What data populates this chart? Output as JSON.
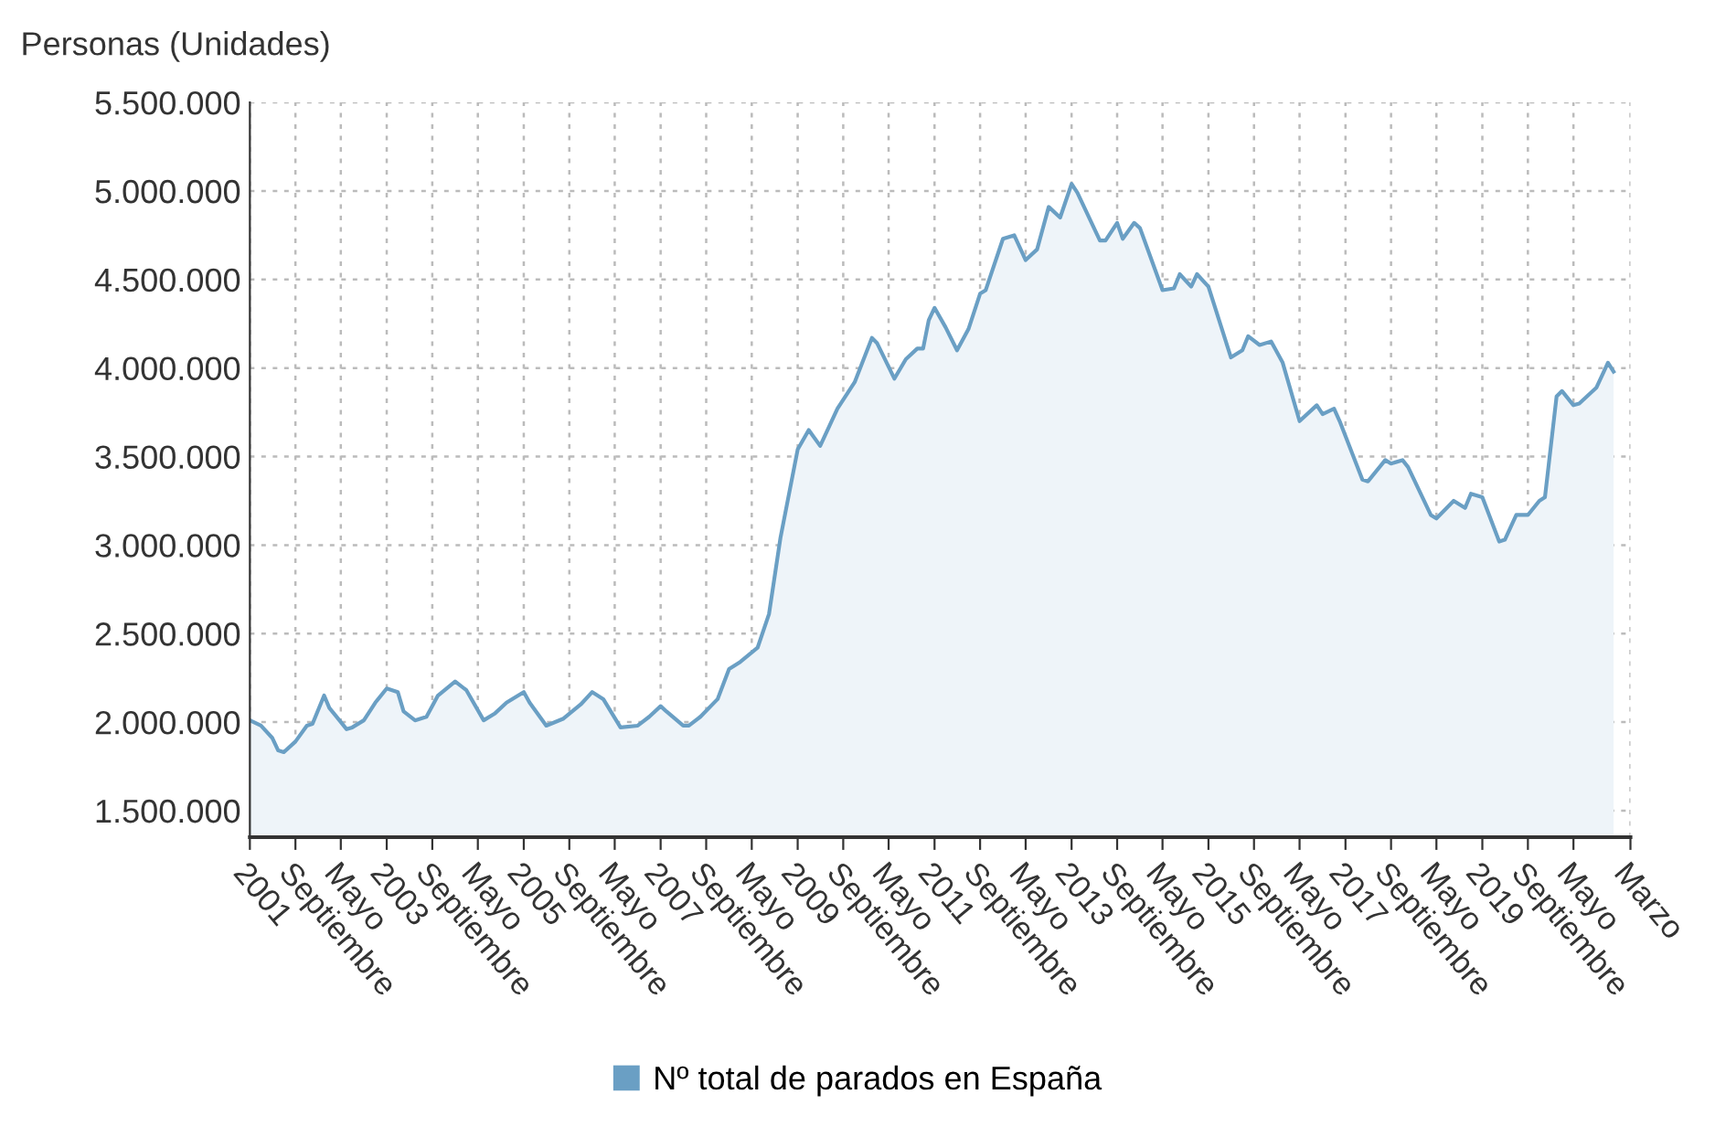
{
  "chart_data": {
    "type": "area",
    "ylabel": "Personas (Unidades)",
    "series": [
      {
        "name": "Nº total de parados en España",
        "color": "#6a9fc4",
        "x": [
          "2001-01",
          "2001-03",
          "2001-05",
          "2001-06",
          "2001-07",
          "2001-09",
          "2001-11",
          "2001-12",
          "2002-02",
          "2002-03",
          "2002-04",
          "2002-06",
          "2002-07",
          "2002-09",
          "2002-11",
          "2003-01",
          "2003-03",
          "2003-04",
          "2003-06",
          "2003-08",
          "2003-10",
          "2004-01",
          "2004-03",
          "2004-06",
          "2004-08",
          "2004-10",
          "2005-01",
          "2005-02",
          "2005-05",
          "2005-08",
          "2005-11",
          "2006-01",
          "2006-03",
          "2006-06",
          "2006-09",
          "2006-11",
          "2007-01",
          "2007-02",
          "2007-05",
          "2007-06",
          "2007-08",
          "2007-11",
          "2008-01",
          "2008-03",
          "2008-06",
          "2008-08",
          "2008-10",
          "2009-01",
          "2009-03",
          "2009-05",
          "2009-08",
          "2009-11",
          "2010-02",
          "2010-03",
          "2010-06",
          "2010-08",
          "2010-10",
          "2010-11",
          "2010-12",
          "2011-01",
          "2011-03",
          "2011-05",
          "2011-07",
          "2011-09",
          "2011-10",
          "2012-01",
          "2012-03",
          "2012-05",
          "2012-07",
          "2012-09",
          "2012-11",
          "2013-01",
          "2013-02",
          "2013-06",
          "2013-07",
          "2013-09",
          "2013-10",
          "2013-12",
          "2014-01",
          "2014-05",
          "2014-07",
          "2014-08",
          "2014-10",
          "2014-11",
          "2015-01",
          "2015-05",
          "2015-07",
          "2015-08",
          "2015-10",
          "2015-12",
          "2016-02",
          "2016-05",
          "2016-08",
          "2016-09",
          "2016-11",
          "2016-12",
          "2017-04",
          "2017-05",
          "2017-08",
          "2017-09",
          "2017-11",
          "2017-12",
          "2018-04",
          "2018-05",
          "2018-08",
          "2018-10",
          "2018-11",
          "2019-01",
          "2019-04",
          "2019-05",
          "2019-07",
          "2019-09",
          "2019-11",
          "2019-12",
          "2020-02",
          "2020-03",
          "2020-05",
          "2020-06",
          "2020-09",
          "2020-11",
          "2020-12"
        ],
        "values": [
          2010000,
          1980000,
          1910000,
          1840000,
          1830000,
          1890000,
          1980000,
          1990000,
          2150000,
          2080000,
          2040000,
          1960000,
          1970000,
          2010000,
          2110000,
          2190000,
          2170000,
          2060000,
          2010000,
          2030000,
          2150000,
          2230000,
          2180000,
          2010000,
          2050000,
          2110000,
          2170000,
          2110000,
          1980000,
          2020000,
          2100000,
          2170000,
          2130000,
          1970000,
          1980000,
          2030000,
          2090000,
          2060000,
          1980000,
          1980000,
          2030000,
          2130000,
          2300000,
          2340000,
          2420000,
          2610000,
          3040000,
          3540000,
          3650000,
          3560000,
          3770000,
          3920000,
          4170000,
          4140000,
          3940000,
          4050000,
          4110000,
          4110000,
          4270000,
          4340000,
          4230000,
          4100000,
          4220000,
          4420000,
          4440000,
          4730000,
          4750000,
          4610000,
          4670000,
          4910000,
          4850000,
          5040000,
          4990000,
          4720000,
          4720000,
          4820000,
          4730000,
          4820000,
          4790000,
          4440000,
          4450000,
          4530000,
          4460000,
          4530000,
          4460000,
          4060000,
          4100000,
          4180000,
          4130000,
          4150000,
          4030000,
          3700000,
          3790000,
          3740000,
          3770000,
          3700000,
          3370000,
          3360000,
          3480000,
          3460000,
          3480000,
          3440000,
          3170000,
          3150000,
          3250000,
          3210000,
          3290000,
          3270000,
          3020000,
          3030000,
          3170000,
          3170000,
          3250000,
          3270000,
          3840000,
          3870000,
          3790000,
          3800000,
          3890000,
          4030000,
          3980000
        ]
      }
    ],
    "xlim": [
      "2001-01",
      "2021-03"
    ],
    "xticks": [
      {
        "value": "2001-01",
        "label": "2001"
      },
      {
        "value": "2001-09",
        "label": "Septiembre"
      },
      {
        "value": "2002-05",
        "label": "Mayo"
      },
      {
        "value": "2003-01",
        "label": "2003"
      },
      {
        "value": "2003-09",
        "label": "Septiembre"
      },
      {
        "value": "2004-05",
        "label": "Mayo"
      },
      {
        "value": "2005-01",
        "label": "2005"
      },
      {
        "value": "2005-09",
        "label": "Septiembre"
      },
      {
        "value": "2006-05",
        "label": "Mayo"
      },
      {
        "value": "2007-01",
        "label": "2007"
      },
      {
        "value": "2007-09",
        "label": "Septiembre"
      },
      {
        "value": "2008-05",
        "label": "Mayo"
      },
      {
        "value": "2009-01",
        "label": "2009"
      },
      {
        "value": "2009-09",
        "label": "Septiembre"
      },
      {
        "value": "2010-05",
        "label": "Mayo"
      },
      {
        "value": "2011-01",
        "label": "2011"
      },
      {
        "value": "2011-09",
        "label": "Septiembre"
      },
      {
        "value": "2012-05",
        "label": "Mayo"
      },
      {
        "value": "2013-01",
        "label": "2013"
      },
      {
        "value": "2013-09",
        "label": "Septiembre"
      },
      {
        "value": "2014-05",
        "label": "Mayo"
      },
      {
        "value": "2015-01",
        "label": "2015"
      },
      {
        "value": "2015-09",
        "label": "Septiembre"
      },
      {
        "value": "2016-05",
        "label": "Mayo"
      },
      {
        "value": "2017-01",
        "label": "2017"
      },
      {
        "value": "2017-09",
        "label": "Septiembre"
      },
      {
        "value": "2018-05",
        "label": "Mayo"
      },
      {
        "value": "2019-01",
        "label": "2019"
      },
      {
        "value": "2019-09",
        "label": "Septiembre"
      },
      {
        "value": "2020-05",
        "label": "Mayo"
      },
      {
        "value": "2021-03",
        "label": "Marzo"
      }
    ],
    "ylim": [
      1350000,
      5500000
    ],
    "yticks": [
      {
        "value": 1500000,
        "label": "1.500.000"
      },
      {
        "value": 2000000,
        "label": "2.000.000"
      },
      {
        "value": 2500000,
        "label": "2.500.000"
      },
      {
        "value": 3000000,
        "label": "3.000.000"
      },
      {
        "value": 3500000,
        "label": "3.500.000"
      },
      {
        "value": 4000000,
        "label": "4.000.000"
      },
      {
        "value": 4500000,
        "label": "4.500.000"
      },
      {
        "value": 5000000,
        "label": "5.000.000"
      },
      {
        "value": 5500000,
        "label": "5.500.000"
      }
    ],
    "grid": true,
    "legend": "bottom",
    "marker": "none",
    "line_style": "solid"
  }
}
